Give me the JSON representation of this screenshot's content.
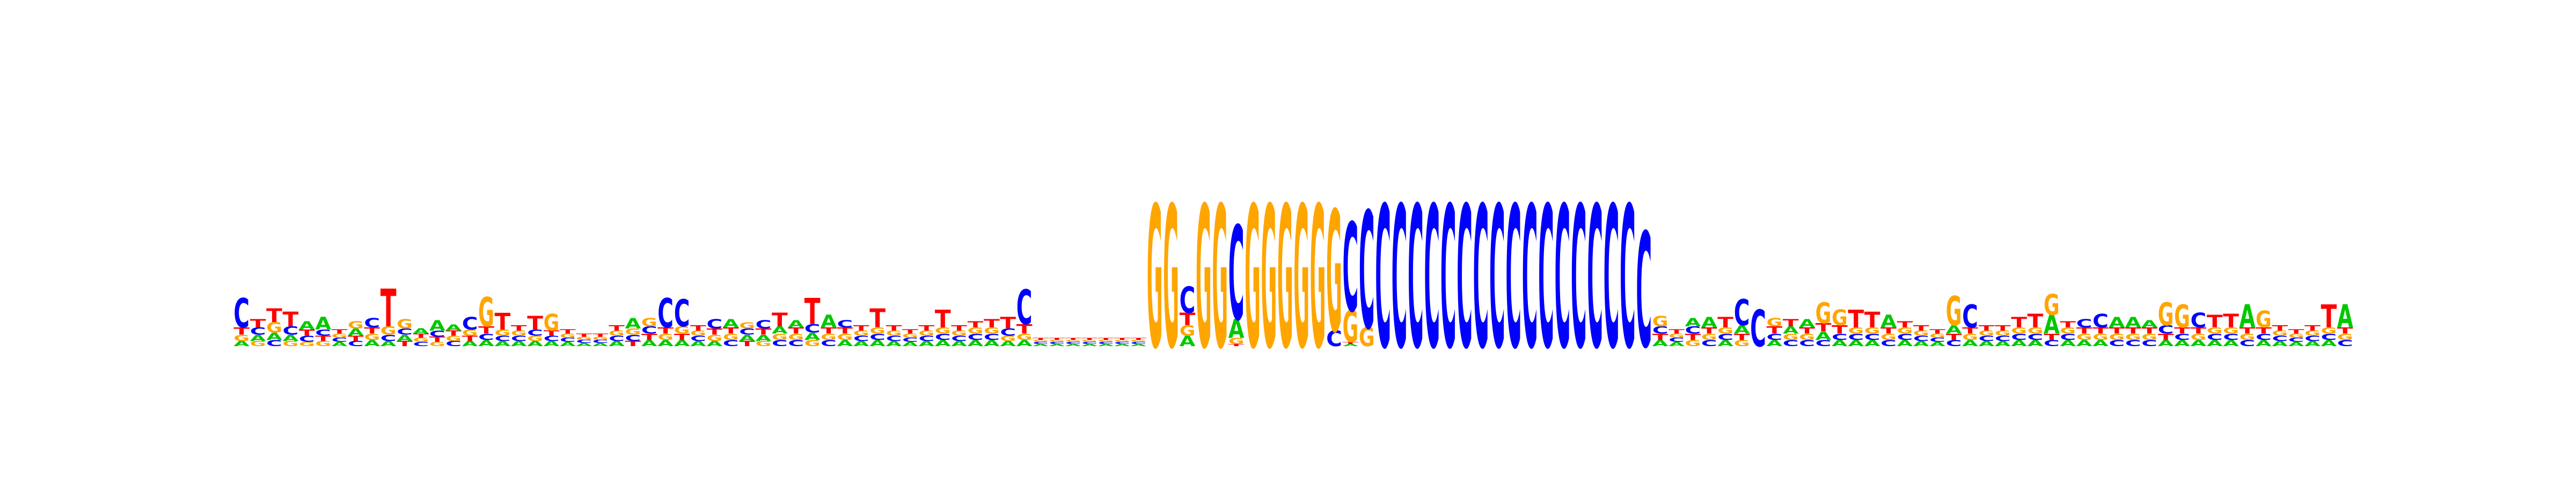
{
  "colors": {
    "A": "#00c800",
    "C": "#0000ff",
    "G": "#ffa500",
    "T": "#ff0000"
  },
  "chart_data": {
    "type": "sequence-logo",
    "alphabet": [
      "A",
      "C",
      "G",
      "T"
    ],
    "ylim": [
      0,
      2
    ],
    "axes_visible": false,
    "grid": false,
    "legend": "none",
    "positions": [
      {
        "A": 0.05,
        "C": 0.28,
        "G": 0.06,
        "T": 0.07
      },
      {
        "A": 0.06,
        "C": 0.07,
        "G": 0.05,
        "T": 0.08
      },
      {
        "A": 0.07,
        "C": 0.06,
        "G": 0.1,
        "T": 0.13
      },
      {
        "A": 0.06,
        "C": 0.08,
        "G": 0.05,
        "T": 0.14
      },
      {
        "A": 0.08,
        "C": 0.06,
        "G": 0.04,
        "T": 0.06
      },
      {
        "A": 0.12,
        "C": 0.06,
        "G": 0.05,
        "T": 0.05
      },
      {
        "A": 0.04,
        "C": 0.04,
        "G": 0.04,
        "T": 0.04
      },
      {
        "A": 0.07,
        "C": 0.05,
        "G": 0.07,
        "T": 0.05
      },
      {
        "A": 0.06,
        "C": 0.09,
        "G": 0.06,
        "T": 0.06
      },
      {
        "A": 0.05,
        "C": 0.06,
        "G": 0.08,
        "T": 0.36
      },
      {
        "A": 0.06,
        "C": 0.06,
        "G": 0.09,
        "T": 0.05
      },
      {
        "A": 0.05,
        "C": 0.04,
        "G": 0.04,
        "T": 0.04
      },
      {
        "A": 0.1,
        "C": 0.06,
        "G": 0.04,
        "T": 0.05
      },
      {
        "A": 0.06,
        "C": 0.05,
        "G": 0.05,
        "T": 0.05
      },
      {
        "A": 0.05,
        "C": 0.12,
        "G": 0.06,
        "T": 0.05
      },
      {
        "A": 0.06,
        "C": 0.06,
        "G": 0.28,
        "T": 0.07
      },
      {
        "A": 0.05,
        "C": 0.05,
        "G": 0.06,
        "T": 0.16
      },
      {
        "A": 0.05,
        "C": 0.05,
        "G": 0.05,
        "T": 0.05
      },
      {
        "A": 0.05,
        "C": 0.06,
        "G": 0.05,
        "T": 0.13
      },
      {
        "A": 0.05,
        "C": 0.05,
        "G": 0.16,
        "T": 0.05
      },
      {
        "A": 0.04,
        "C": 0.04,
        "G": 0.04,
        "T": 0.04
      },
      {
        "A": 0.03,
        "C": 0.03,
        "G": 0.03,
        "T": 0.03
      },
      {
        "A": 0.03,
        "C": 0.03,
        "G": 0.03,
        "T": 0.03
      },
      {
        "A": 0.05,
        "C": 0.05,
        "G": 0.05,
        "T": 0.05
      },
      {
        "A": 0.1,
        "C": 0.06,
        "G": 0.06,
        "T": 0.05
      },
      {
        "A": 0.06,
        "C": 0.07,
        "G": 0.08,
        "T": 0.06
      },
      {
        "A": 0.06,
        "C": 0.28,
        "G": 0.06,
        "T": 0.06
      },
      {
        "A": 0.06,
        "C": 0.26,
        "G": 0.07,
        "T": 0.06
      },
      {
        "A": 0.05,
        "C": 0.05,
        "G": 0.05,
        "T": 0.05
      },
      {
        "A": 0.05,
        "C": 0.09,
        "G": 0.06,
        "T": 0.06
      },
      {
        "A": 0.08,
        "C": 0.06,
        "G": 0.06,
        "T": 0.06
      },
      {
        "A": 0.06,
        "C": 0.06,
        "G": 0.06,
        "T": 0.05
      },
      {
        "A": 0.06,
        "C": 0.08,
        "G": 0.05,
        "T": 0.06
      },
      {
        "A": 0.07,
        "C": 0.06,
        "G": 0.06,
        "T": 0.13
      },
      {
        "A": 0.07,
        "C": 0.06,
        "G": 0.06,
        "T": 0.06
      },
      {
        "A": 0.07,
        "C": 0.08,
        "G": 0.06,
        "T": 0.25
      },
      {
        "A": 0.12,
        "C": 0.06,
        "G": 0.06,
        "T": 0.06
      },
      {
        "A": 0.06,
        "C": 0.07,
        "G": 0.06,
        "T": 0.06
      },
      {
        "A": 0.05,
        "C": 0.05,
        "G": 0.05,
        "T": 0.05
      },
      {
        "A": 0.06,
        "C": 0.06,
        "G": 0.06,
        "T": 0.18
      },
      {
        "A": 0.05,
        "C": 0.05,
        "G": 0.05,
        "T": 0.05
      },
      {
        "A": 0.04,
        "C": 0.04,
        "G": 0.04,
        "T": 0.04
      },
      {
        "A": 0.05,
        "C": 0.05,
        "G": 0.05,
        "T": 0.05
      },
      {
        "A": 0.06,
        "C": 0.06,
        "G": 0.06,
        "T": 0.17
      },
      {
        "A": 0.05,
        "C": 0.05,
        "G": 0.05,
        "T": 0.05
      },
      {
        "A": 0.06,
        "C": 0.06,
        "G": 0.06,
        "T": 0.06
      },
      {
        "A": 0.06,
        "C": 0.06,
        "G": 0.06,
        "T": 0.08
      },
      {
        "A": 0.05,
        "C": 0.07,
        "G": 0.05,
        "T": 0.11
      },
      {
        "A": 0.06,
        "C": 0.33,
        "G": 0.06,
        "T": 0.09
      },
      {
        "A": 0.02,
        "C": 0.02,
        "G": 0.02,
        "T": 0.02
      },
      {
        "A": 0.02,
        "C": 0.02,
        "G": 0.02,
        "T": 0.02
      },
      {
        "A": 0.02,
        "C": 0.02,
        "G": 0.02,
        "T": 0.02
      },
      {
        "A": 0.02,
        "C": 0.02,
        "G": 0.02,
        "T": 0.02
      },
      {
        "A": 0.02,
        "C": 0.02,
        "G": 0.02,
        "T": 0.02
      },
      {
        "A": 0.02,
        "C": 0.02,
        "G": 0.02,
        "T": 0.02
      },
      {
        "A": 0.02,
        "C": 0.02,
        "G": 0.02,
        "T": 0.02
      },
      {
        "A": 0.0,
        "C": 0.0,
        "G": 1.36,
        "T": 0.0
      },
      {
        "A": 0.0,
        "C": 0.0,
        "G": 1.36,
        "T": 0.0
      },
      {
        "A": 0.1,
        "C": 0.25,
        "G": 0.1,
        "T": 0.12
      },
      {
        "A": 0.0,
        "C": 0.0,
        "G": 1.36,
        "T": 0.0
      },
      {
        "A": 0.0,
        "C": 0.0,
        "G": 1.36,
        "T": 0.0
      },
      {
        "A": 0.18,
        "C": 0.9,
        "G": 0.06,
        "T": 0.02
      },
      {
        "A": 0.0,
        "C": 0.0,
        "G": 1.36,
        "T": 0.0
      },
      {
        "A": 0.0,
        "C": 0.0,
        "G": 1.36,
        "T": 0.0
      },
      {
        "A": 0.0,
        "C": 0.0,
        "G": 1.36,
        "T": 0.0
      },
      {
        "A": 0.0,
        "C": 0.0,
        "G": 1.36,
        "T": 0.0
      },
      {
        "A": 0.0,
        "C": 0.0,
        "G": 1.36,
        "T": 0.0
      },
      {
        "A": 0.0,
        "C": 0.15,
        "G": 1.16,
        "T": 0.0
      },
      {
        "A": 0.02,
        "C": 0.85,
        "G": 0.3,
        "T": 0.02
      },
      {
        "A": 0.0,
        "C": 1.12,
        "G": 0.18,
        "T": 0.0
      },
      {
        "A": 0.0,
        "C": 1.36,
        "G": 0.0,
        "T": 0.0
      },
      {
        "A": 0.0,
        "C": 1.36,
        "G": 0.0,
        "T": 0.0
      },
      {
        "A": 0.0,
        "C": 1.36,
        "G": 0.0,
        "T": 0.0
      },
      {
        "A": 0.0,
        "C": 1.36,
        "G": 0.0,
        "T": 0.0
      },
      {
        "A": 0.0,
        "C": 1.36,
        "G": 0.0,
        "T": 0.0
      },
      {
        "A": 0.0,
        "C": 1.36,
        "G": 0.0,
        "T": 0.0
      },
      {
        "A": 0.0,
        "C": 1.36,
        "G": 0.0,
        "T": 0.0
      },
      {
        "A": 0.0,
        "C": 1.36,
        "G": 0.0,
        "T": 0.0
      },
      {
        "A": 0.0,
        "C": 1.36,
        "G": 0.0,
        "T": 0.0
      },
      {
        "A": 0.0,
        "C": 1.36,
        "G": 0.0,
        "T": 0.0
      },
      {
        "A": 0.0,
        "C": 1.36,
        "G": 0.0,
        "T": 0.0
      },
      {
        "A": 0.0,
        "C": 1.36,
        "G": 0.0,
        "T": 0.0
      },
      {
        "A": 0.0,
        "C": 1.36,
        "G": 0.0,
        "T": 0.0
      },
      {
        "A": 0.0,
        "C": 1.36,
        "G": 0.0,
        "T": 0.0
      },
      {
        "A": 0.0,
        "C": 1.36,
        "G": 0.0,
        "T": 0.0
      },
      {
        "A": 0.0,
        "C": 1.36,
        "G": 0.0,
        "T": 0.0
      },
      {
        "A": 0.0,
        "C": 1.1,
        "G": 0.0,
        "T": 0.0
      },
      {
        "A": 0.06,
        "C": 0.07,
        "G": 0.1,
        "T": 0.06
      },
      {
        "A": 0.04,
        "C": 0.04,
        "G": 0.04,
        "T": 0.04
      },
      {
        "A": 0.08,
        "C": 0.07,
        "G": 0.06,
        "T": 0.06
      },
      {
        "A": 0.1,
        "C": 0.06,
        "G": 0.06,
        "T": 0.06
      },
      {
        "A": 0.06,
        "C": 0.06,
        "G": 0.06,
        "T": 0.1
      },
      {
        "A": 0.08,
        "C": 0.25,
        "G": 0.06,
        "T": 0.06
      },
      {
        "A": 0.0,
        "C": 0.35,
        "G": 0.0,
        "T": 0.0
      },
      {
        "A": 0.06,
        "C": 0.06,
        "G": 0.08,
        "T": 0.07
      },
      {
        "A": 0.07,
        "C": 0.06,
        "G": 0.06,
        "T": 0.07
      },
      {
        "A": 0.08,
        "C": 0.06,
        "G": 0.06,
        "T": 0.06
      },
      {
        "A": 0.08,
        "C": 0.06,
        "G": 0.2,
        "T": 0.08
      },
      {
        "A": 0.06,
        "C": 0.06,
        "G": 0.15,
        "T": 0.08
      },
      {
        "A": 0.06,
        "C": 0.06,
        "G": 0.06,
        "T": 0.17
      },
      {
        "A": 0.06,
        "C": 0.06,
        "G": 0.06,
        "T": 0.15
      },
      {
        "A": 0.12,
        "C": 0.06,
        "G": 0.06,
        "T": 0.06
      },
      {
        "A": 0.06,
        "C": 0.06,
        "G": 0.06,
        "T": 0.06
      },
      {
        "A": 0.05,
        "C": 0.05,
        "G": 0.05,
        "T": 0.05
      },
      {
        "A": 0.04,
        "C": 0.04,
        "G": 0.04,
        "T": 0.04
      },
      {
        "A": 0.08,
        "C": 0.06,
        "G": 0.28,
        "T": 0.06
      },
      {
        "A": 0.06,
        "C": 0.22,
        "G": 0.06,
        "T": 0.06
      },
      {
        "A": 0.05,
        "C": 0.05,
        "G": 0.05,
        "T": 0.05
      },
      {
        "A": 0.05,
        "C": 0.05,
        "G": 0.05,
        "T": 0.05
      },
      {
        "A": 0.06,
        "C": 0.06,
        "G": 0.06,
        "T": 0.1
      },
      {
        "A": 0.06,
        "C": 0.06,
        "G": 0.06,
        "T": 0.13
      },
      {
        "A": 0.18,
        "C": 0.06,
        "G": 0.2,
        "T": 0.06
      },
      {
        "A": 0.06,
        "C": 0.06,
        "G": 0.06,
        "T": 0.06
      },
      {
        "A": 0.06,
        "C": 0.08,
        "G": 0.06,
        "T": 0.06
      },
      {
        "A": 0.06,
        "C": 0.13,
        "G": 0.06,
        "T": 0.06
      },
      {
        "A": 0.1,
        "C": 0.06,
        "G": 0.06,
        "T": 0.06
      },
      {
        "A": 0.1,
        "C": 0.06,
        "G": 0.06,
        "T": 0.06
      },
      {
        "A": 0.07,
        "C": 0.06,
        "G": 0.06,
        "T": 0.06
      },
      {
        "A": 0.06,
        "C": 0.08,
        "G": 0.22,
        "T": 0.06
      },
      {
        "A": 0.06,
        "C": 0.06,
        "G": 0.22,
        "T": 0.06
      },
      {
        "A": 0.06,
        "C": 0.14,
        "G": 0.06,
        "T": 0.06
      },
      {
        "A": 0.06,
        "C": 0.06,
        "G": 0.06,
        "T": 0.12
      },
      {
        "A": 0.06,
        "C": 0.06,
        "G": 0.06,
        "T": 0.13
      },
      {
        "A": 0.22,
        "C": 0.06,
        "G": 0.06,
        "T": 0.06
      },
      {
        "A": 0.06,
        "C": 0.06,
        "G": 0.16,
        "T": 0.06
      },
      {
        "A": 0.05,
        "C": 0.05,
        "G": 0.05,
        "T": 0.05
      },
      {
        "A": 0.04,
        "C": 0.04,
        "G": 0.04,
        "T": 0.04
      },
      {
        "A": 0.05,
        "C": 0.05,
        "G": 0.05,
        "T": 0.05
      },
      {
        "A": 0.06,
        "C": 0.06,
        "G": 0.06,
        "T": 0.22
      },
      {
        "A": 0.22,
        "C": 0.06,
        "G": 0.06,
        "T": 0.06
      }
    ]
  }
}
